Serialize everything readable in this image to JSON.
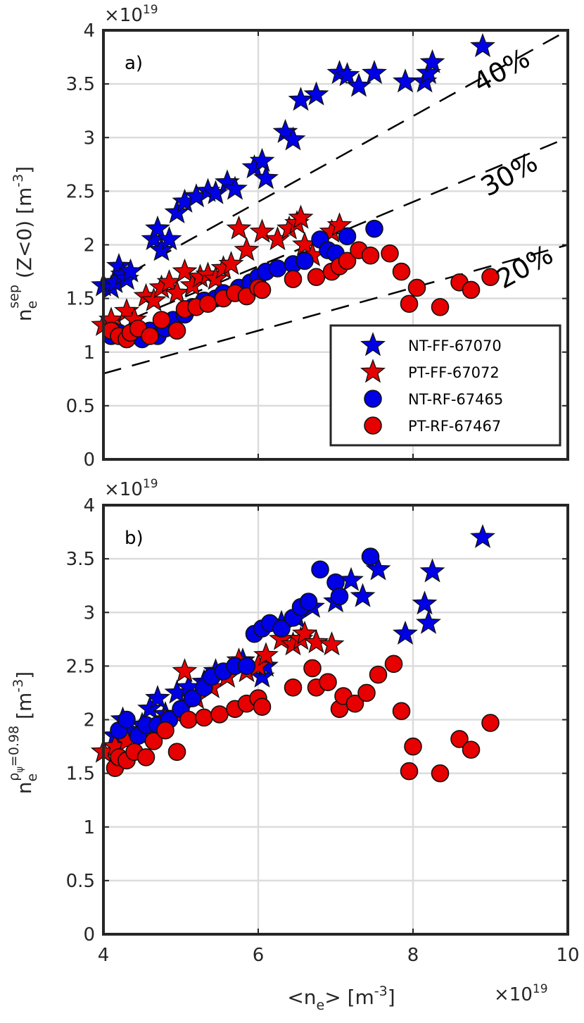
{
  "figure": {
    "x_axis_label": "<n",
    "x_axis_label_sub": "e",
    "x_axis_label_rest": "> [m",
    "x_axis_label_sup": "-3",
    "x_axis_label_end": "]",
    "x_multiplier": "×10",
    "x_multiplier_exp": "19"
  },
  "chart_data": [
    {
      "type": "scatter",
      "panel_tag": "a)",
      "y_multiplier": "×10",
      "y_multiplier_exp": "19",
      "ylabel": {
        "base": "n",
        "sub": "e",
        "sup": "sep",
        "rest": " (Z<0) [m",
        "unit_sup": "-3",
        "end": "]"
      },
      "xlim": [
        4,
        10
      ],
      "ylim": [
        0,
        4
      ],
      "xticks": [
        "4",
        "6",
        "8",
        "10"
      ],
      "yticks": [
        "0",
        "0.5",
        "1",
        "1.5",
        "2",
        "2.5",
        "3",
        "3.5",
        "4"
      ],
      "grid": true,
      "legend_position": "bottom-right",
      "legend": [
        "NT-FF-67070",
        "PT-FF-67072",
        "NT-RF-67465",
        "PT-RF-67467"
      ],
      "reference_lines": [
        {
          "label": "40%",
          "points": [
            [
              4.0,
              1.6
            ],
            [
              10.0,
              4.0
            ]
          ]
        },
        {
          "label": "30%",
          "points": [
            [
              4.0,
              1.2
            ],
            [
              10.0,
              3.0
            ]
          ]
        },
        {
          "label": "20%",
          "points": [
            [
              4.0,
              0.8
            ],
            [
              10.0,
              2.0
            ]
          ]
        }
      ],
      "series": [
        {
          "name": "NT-FF-67070",
          "marker": "star",
          "color": "#0000e6",
          "x": [
            4.0,
            4.1,
            4.15,
            4.2,
            4.25,
            4.3,
            4.35,
            4.65,
            4.7,
            4.75,
            4.85,
            4.95,
            5.05,
            5.2,
            5.35,
            5.45,
            5.6,
            5.7,
            5.95,
            6.05,
            6.1,
            6.35,
            6.45,
            6.55,
            6.75,
            7.05,
            7.15,
            7.3,
            7.5,
            7.9,
            8.15,
            8.2,
            8.25,
            8.9
          ],
          "y": [
            1.62,
            1.6,
            1.65,
            1.8,
            1.72,
            1.68,
            1.75,
            2.05,
            2.15,
            1.95,
            2.05,
            2.3,
            2.4,
            2.45,
            2.5,
            2.48,
            2.58,
            2.52,
            2.72,
            2.78,
            2.62,
            3.05,
            2.98,
            3.35,
            3.4,
            3.6,
            3.58,
            3.48,
            3.6,
            3.52,
            3.52,
            3.6,
            3.7,
            3.85
          ]
        },
        {
          "name": "PT-FF-67072",
          "marker": "star",
          "color": "#e60000",
          "x": [
            4.0,
            4.1,
            4.2,
            4.3,
            4.4,
            4.55,
            4.65,
            4.75,
            4.85,
            4.95,
            5.05,
            5.15,
            5.25,
            5.35,
            5.45,
            5.55,
            5.65,
            5.75,
            5.85,
            6.05,
            6.25,
            6.4,
            6.5,
            6.55,
            6.6,
            6.7,
            6.95,
            7.05
          ],
          "y": [
            1.25,
            1.3,
            1.2,
            1.38,
            1.3,
            1.52,
            1.48,
            1.6,
            1.65,
            1.55,
            1.75,
            1.62,
            1.7,
            1.72,
            1.68,
            1.78,
            1.82,
            2.15,
            1.95,
            2.12,
            2.05,
            2.15,
            2.2,
            2.25,
            2.0,
            1.9,
            2.12,
            2.18
          ]
        },
        {
          "name": "NT-RF-67465",
          "marker": "circle",
          "color": "#0000e6",
          "x": [
            4.1,
            4.2,
            4.3,
            4.4,
            4.5,
            4.6,
            4.7,
            4.8,
            4.9,
            5.05,
            5.15,
            5.3,
            5.45,
            5.55,
            5.75,
            5.9,
            6.0,
            6.1,
            6.25,
            6.45,
            6.6,
            6.8,
            6.9,
            7.0,
            7.15,
            7.5
          ],
          "y": [
            1.15,
            1.18,
            1.12,
            1.2,
            1.12,
            1.2,
            1.15,
            1.22,
            1.3,
            1.35,
            1.42,
            1.48,
            1.5,
            1.55,
            1.6,
            1.65,
            1.7,
            1.75,
            1.78,
            1.82,
            1.85,
            2.05,
            1.95,
            1.92,
            2.08,
            2.15
          ]
        },
        {
          "name": "PT-RF-67467",
          "marker": "circle",
          "color": "#e60000",
          "x": [
            4.1,
            4.2,
            4.3,
            4.35,
            4.45,
            4.6,
            4.75,
            4.95,
            5.05,
            5.2,
            5.35,
            5.55,
            5.7,
            5.85,
            6.0,
            6.05,
            6.45,
            6.75,
            6.95,
            7.05,
            7.15,
            7.3,
            7.45,
            7.7,
            7.85,
            7.95,
            8.05,
            8.35,
            8.6,
            8.75,
            9.0
          ],
          "y": [
            1.2,
            1.15,
            1.12,
            1.18,
            1.22,
            1.15,
            1.3,
            1.2,
            1.4,
            1.42,
            1.45,
            1.5,
            1.55,
            1.52,
            1.6,
            1.58,
            1.68,
            1.7,
            1.75,
            1.8,
            1.85,
            1.95,
            1.9,
            1.92,
            1.75,
            1.45,
            1.6,
            1.42,
            1.65,
            1.58,
            1.7
          ]
        }
      ]
    },
    {
      "type": "scatter",
      "panel_tag": "b)",
      "y_multiplier": "×10",
      "y_multiplier_exp": "19",
      "ylabel": {
        "base": "n",
        "sub": "e",
        "sup": "ρ",
        "sup_sub": "ψ",
        "sup_rest": "=0.98",
        "rest": " [m",
        "unit_sup": "-3",
        "end": "]"
      },
      "xlim": [
        4,
        10
      ],
      "ylim": [
        0,
        4
      ],
      "xticks": [
        "4",
        "6",
        "8",
        "10"
      ],
      "yticks": [
        "0",
        "0.5",
        "1",
        "1.5",
        "2",
        "2.5",
        "3",
        "3.5",
        "4"
      ],
      "grid": true,
      "series": [
        {
          "name": "NT-FF-67070",
          "marker": "star",
          "color": "#0000e6",
          "x": [
            4.0,
            4.15,
            4.25,
            4.35,
            4.5,
            4.6,
            4.7,
            4.8,
            4.95,
            5.1,
            5.3,
            5.45,
            5.6,
            5.8,
            6.05,
            6.1,
            6.3,
            6.5,
            6.7,
            7.0,
            7.2,
            7.35,
            7.55,
            7.9,
            8.15,
            8.2,
            8.25,
            8.9
          ],
          "y": [
            1.7,
            1.85,
            2.0,
            1.9,
            1.95,
            2.1,
            2.2,
            2.05,
            2.25,
            2.3,
            2.35,
            2.45,
            2.4,
            2.55,
            2.4,
            2.5,
            2.9,
            2.95,
            3.05,
            3.1,
            3.3,
            3.15,
            3.4,
            2.8,
            3.08,
            2.9,
            3.38,
            3.7
          ]
        },
        {
          "name": "PT-FF-67072",
          "marker": "star",
          "color": "#e60000",
          "x": [
            4.0,
            4.15,
            4.3,
            4.5,
            4.65,
            4.8,
            4.95,
            5.05,
            5.2,
            5.4,
            5.6,
            5.75,
            5.85,
            6.0,
            6.1,
            6.3,
            6.45,
            6.55,
            6.6,
            6.75,
            6.95
          ],
          "y": [
            1.7,
            1.75,
            1.8,
            1.85,
            1.9,
            2.0,
            2.05,
            2.45,
            2.2,
            2.3,
            2.4,
            2.55,
            2.45,
            2.5,
            2.6,
            2.75,
            2.7,
            2.75,
            2.8,
            2.72,
            2.7
          ]
        },
        {
          "name": "NT-RF-67465",
          "marker": "circle",
          "color": "#0000e6",
          "x": [
            4.2,
            4.3,
            4.45,
            4.55,
            4.7,
            4.85,
            5.0,
            5.15,
            5.3,
            5.4,
            5.55,
            5.7,
            5.85,
            5.95,
            6.05,
            6.15,
            6.3,
            6.45,
            6.55,
            6.65,
            6.8,
            7.0,
            7.05,
            7.45
          ],
          "y": [
            1.9,
            2.0,
            1.85,
            1.95,
            1.95,
            2.0,
            2.1,
            2.2,
            2.3,
            2.4,
            2.45,
            2.5,
            2.5,
            2.8,
            2.85,
            2.9,
            2.85,
            2.95,
            3.05,
            3.1,
            3.4,
            3.28,
            3.15,
            3.52
          ]
        },
        {
          "name": "PT-RF-67467",
          "marker": "circle",
          "color": "#e60000",
          "x": [
            4.15,
            4.2,
            4.3,
            4.4,
            4.55,
            4.65,
            4.8,
            4.95,
            5.1,
            5.3,
            5.5,
            5.7,
            5.85,
            6.0,
            6.05,
            6.45,
            6.7,
            6.75,
            6.9,
            7.05,
            7.1,
            7.25,
            7.4,
            7.55,
            7.75,
            7.85,
            7.95,
            8.0,
            8.35,
            8.6,
            8.75,
            9.0
          ],
          "y": [
            1.55,
            1.65,
            1.62,
            1.7,
            1.65,
            1.8,
            1.9,
            1.7,
            2.0,
            2.02,
            2.05,
            2.1,
            2.15,
            2.2,
            2.12,
            2.3,
            2.48,
            2.3,
            2.35,
            2.1,
            2.22,
            2.15,
            2.25,
            2.42,
            2.52,
            2.08,
            1.52,
            1.75,
            1.5,
            1.82,
            1.72,
            1.97
          ]
        }
      ]
    }
  ]
}
